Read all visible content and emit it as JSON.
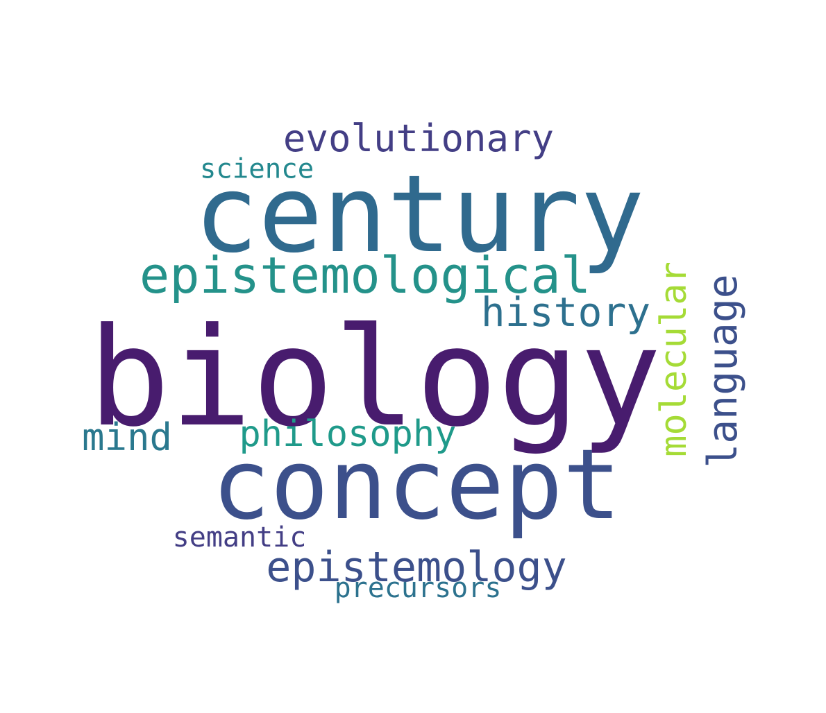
{
  "words": [
    {
      "text": "biology",
      "color": "#481c6e"
    },
    {
      "text": "century",
      "color": "#306a8e"
    },
    {
      "text": "concept",
      "color": "#3c508b"
    },
    {
      "text": "epistemological",
      "color": "#24928a"
    },
    {
      "text": "evolutionary",
      "color": "#433e85"
    },
    {
      "text": "history",
      "color": "#2d708e"
    },
    {
      "text": "molecular",
      "color": "#a5db36"
    },
    {
      "text": "language",
      "color": "#3c508b"
    },
    {
      "text": "philosophy",
      "color": "#1f9a8a"
    },
    {
      "text": "mind",
      "color": "#2a788e"
    },
    {
      "text": "epistemology",
      "color": "#3c508b"
    },
    {
      "text": "semantic",
      "color": "#433e85"
    },
    {
      "text": "precursors",
      "color": "#2c728e"
    },
    {
      "text": "science",
      "color": "#23888e"
    }
  ]
}
